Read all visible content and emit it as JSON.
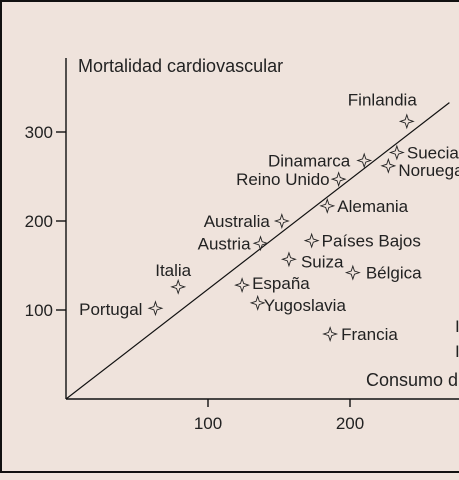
{
  "chart_data": {
    "type": "scatter",
    "title": "",
    "ylabel": "Mortalidad cardiovascular",
    "xlabel": "Consumo d",
    "x_ticks": [
      100,
      200
    ],
    "y_ticks": [
      100,
      200,
      300
    ],
    "xlim": [
      0,
      270
    ],
    "ylim": [
      0,
      380
    ],
    "grid": false,
    "points": [
      {
        "label": "Finlandia",
        "x": 240,
        "y": 312
      },
      {
        "label": "Suecia",
        "x": 233,
        "y": 277
      },
      {
        "label": "Noruega",
        "x": 227,
        "y": 262
      },
      {
        "label": "Dinamarca",
        "x": 210,
        "y": 268
      },
      {
        "label": "Reino Unido",
        "x": 192,
        "y": 247
      },
      {
        "label": "Alemania",
        "x": 184,
        "y": 217
      },
      {
        "label": "Australia",
        "x": 152,
        "y": 200
      },
      {
        "label": "Austria",
        "x": 137,
        "y": 175
      },
      {
        "label": "Países Bajos",
        "x": 173,
        "y": 178
      },
      {
        "label": "Suiza",
        "x": 157,
        "y": 157
      },
      {
        "label": "Bélgica",
        "x": 202,
        "y": 142
      },
      {
        "label": "Italia",
        "x": 79,
        "y": 126
      },
      {
        "label": "España",
        "x": 124,
        "y": 128
      },
      {
        "label": "Yugoslavia",
        "x": 135,
        "y": 108
      },
      {
        "label": "Portugal",
        "x": 63,
        "y": 102
      },
      {
        "label": "Francia",
        "x": 186,
        "y": 73
      }
    ],
    "trendline": {
      "x": [
        0,
        270
      ],
      "y": [
        0,
        333
      ]
    },
    "partial_labels": [
      "I",
      "I"
    ]
  }
}
